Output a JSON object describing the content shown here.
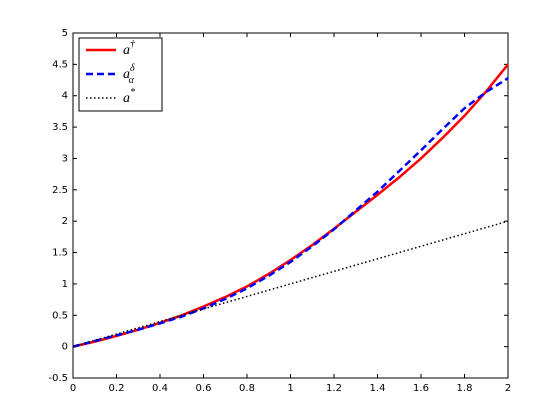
{
  "chart_data": {
    "type": "line",
    "x": [
      0,
      0.1,
      0.2,
      0.3,
      0.4,
      0.5,
      0.6,
      0.7,
      0.8,
      0.9,
      1.0,
      1.1,
      1.2,
      1.3,
      1.4,
      1.5,
      1.6,
      1.7,
      1.8,
      1.9,
      2.0
    ],
    "series": [
      {
        "name": "a†",
        "color": "#ff0000",
        "dash": "solid",
        "values": [
          0,
          0.08,
          0.17,
          0.27,
          0.38,
          0.5,
          0.64,
          0.79,
          0.96,
          1.16,
          1.38,
          1.62,
          1.88,
          2.15,
          2.42,
          2.7,
          3.0,
          3.33,
          3.68,
          4.07,
          4.5
        ]
      },
      {
        "name": "aδα",
        "color": "#0000ff",
        "dash": "dashed",
        "values": [
          0,
          0.09,
          0.18,
          0.27,
          0.37,
          0.48,
          0.61,
          0.76,
          0.93,
          1.13,
          1.35,
          1.6,
          1.87,
          2.17,
          2.47,
          2.8,
          3.13,
          3.47,
          3.8,
          4.06,
          4.28
        ]
      },
      {
        "name": "a*",
        "color": "#000000",
        "dash": "dotted",
        "values": [
          0,
          0.1,
          0.2,
          0.3,
          0.4,
          0.5,
          0.6,
          0.7,
          0.8,
          0.9,
          1.0,
          1.1,
          1.2,
          1.3,
          1.4,
          1.5,
          1.6,
          1.7,
          1.8,
          1.9,
          2.0
        ]
      }
    ],
    "xlim": [
      0,
      2
    ],
    "xticks": [
      0,
      0.2,
      0.4,
      0.6,
      0.8,
      1,
      1.2,
      1.4,
      1.6,
      1.8,
      2
    ],
    "ylim": [
      -0.5,
      5
    ],
    "yticks": [
      -0.5,
      0,
      0.5,
      1,
      1.5,
      2,
      2.5,
      3,
      3.5,
      4,
      4.5,
      5
    ],
    "grid": false,
    "legend": "top-left"
  }
}
